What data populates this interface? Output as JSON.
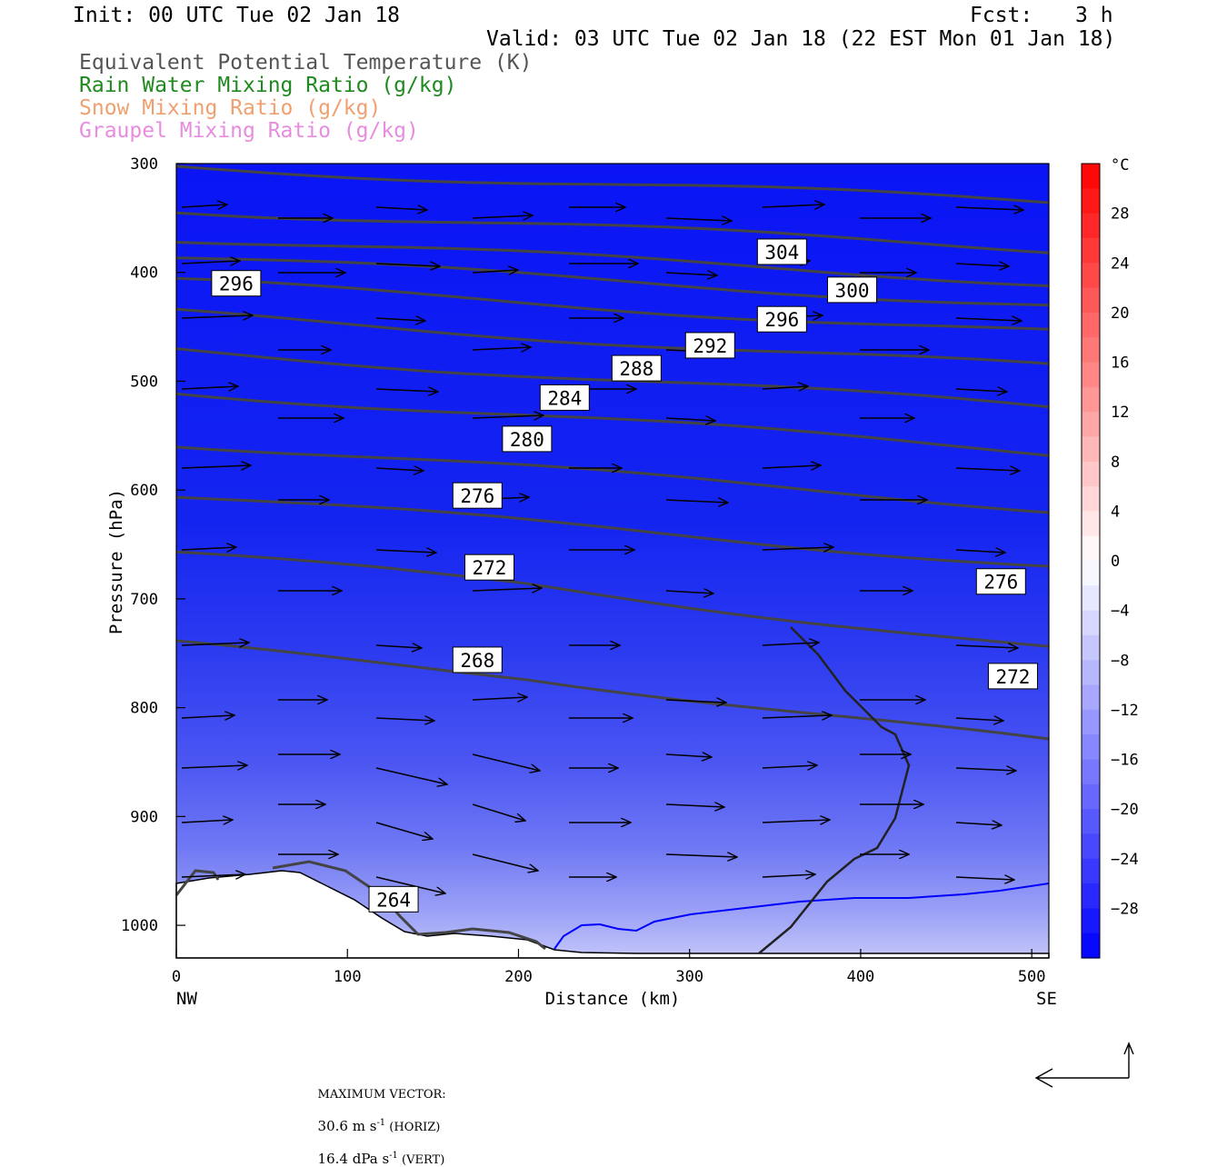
{
  "header": {
    "init": "Init: 00 UTC Tue 02 Jan 18",
    "fcst_label": "Fcst:",
    "fcst_value": "3 h",
    "valid": "Valid: 03 UTC Tue 02 Jan 18 (22 EST Mon 01 Jan 18)"
  },
  "legend": [
    {
      "label": "Equivalent Potential Temperature (K)",
      "color": "#555555"
    },
    {
      "label": "Rain Water Mixing Ratio (g/kg)",
      "color": "#1f8a1f"
    },
    {
      "label": "Snow Mixing Ratio (g/kg)",
      "color": "#f0a070"
    },
    {
      "label": "Graupel Mixing Ratio (g/kg)",
      "color": "#e88ce0"
    }
  ],
  "chart_data": {
    "type": "cross-section",
    "ylabel": "Pressure (hPa)",
    "xlabel": "Distance (km)",
    "x_ticks": [
      "0",
      "100",
      "200",
      "300",
      "400",
      "500"
    ],
    "y_ticks": [
      "300",
      "400",
      "500",
      "600",
      "700",
      "800",
      "900",
      "1000"
    ],
    "xlim": [
      0,
      510
    ],
    "ylim": [
      1030,
      300
    ],
    "x_end_labels": {
      "left": "NW",
      "right": "SE"
    },
    "theta_e_contours": [
      {
        "value": "296",
        "label": "296",
        "x": 35,
        "p": 410
      },
      {
        "value": "304",
        "label": "304",
        "x": 354,
        "p": 381
      },
      {
        "value": "300",
        "label": "300",
        "x": 395,
        "p": 416
      },
      {
        "value": "296",
        "label": "296",
        "x": 354,
        "p": 443
      },
      {
        "value": "292",
        "label": "292",
        "x": 312,
        "p": 467
      },
      {
        "value": "288",
        "label": "288",
        "x": 269,
        "p": 488
      },
      {
        "value": "284",
        "label": "284",
        "x": 227,
        "p": 515
      },
      {
        "value": "280",
        "label": "280",
        "x": 205,
        "p": 553
      },
      {
        "value": "276",
        "label": "276",
        "x": 176,
        "p": 605
      },
      {
        "value": "272",
        "label": "272",
        "x": 183,
        "p": 671
      },
      {
        "value": "276",
        "label": "276",
        "x": 482,
        "p": 684
      },
      {
        "value": "268",
        "label": "268",
        "x": 176,
        "p": 756
      },
      {
        "value": "272",
        "label": "272",
        "x": 489,
        "p": 771
      },
      {
        "value": "264",
        "label": "264",
        "x": 127,
        "p": 976
      }
    ],
    "colorbar": {
      "unit": "°C",
      "tick_labels": [
        "28",
        "24",
        "20",
        "16",
        "12",
        "8",
        "4",
        "0",
        "−4",
        "−8",
        "−12",
        "−16",
        "−20",
        "−24",
        "−28"
      ],
      "range": [
        -32,
        32
      ],
      "step": 2,
      "warm_color": "#ff0000",
      "cold_color": "#0000ff"
    },
    "contour_colors": {
      "theta_e": "#444444",
      "freezing_line": "#0000ff",
      "cloud_edge": "#222222"
    }
  },
  "footer": {
    "max_vector_label": "MAXIMUM VECTOR:",
    "horiz_value": "30.6 m s",
    "horiz_exp": "-1",
    "horiz_suffix": " (HORIZ)",
    "vert_value": "16.4 dPa s",
    "vert_exp": "-1",
    "vert_suffix": " (VERT)"
  }
}
